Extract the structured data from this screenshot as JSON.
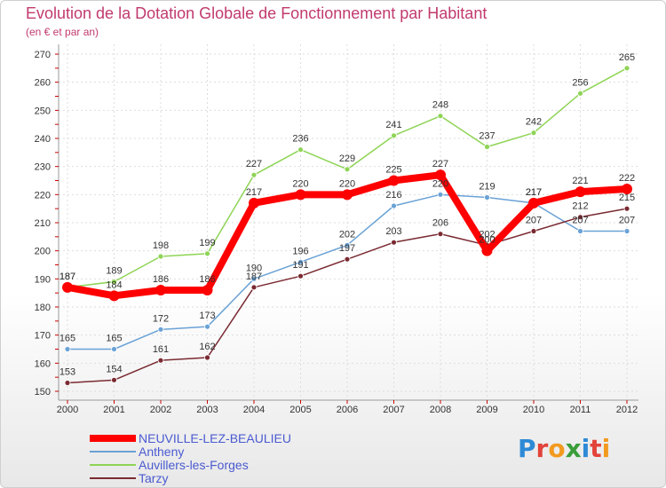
{
  "title": "Evolution de la Dotation Globale de Fonctionnement par Habitant",
  "subtitle": "(en € et par an)",
  "logo": {
    "text": "Proxiti",
    "letters": [
      "P",
      "r",
      "o",
      "x",
      "i",
      "t",
      "i"
    ],
    "colors": [
      "#2e8ad6",
      "#e2433a",
      "#f29a1f",
      "#3a9d3a",
      "#2e8ad6",
      "#e2433a",
      "#f29a1f"
    ]
  },
  "chart_data": {
    "type": "line",
    "title": "Evolution de la Dotation Globale de Fonctionnement par Habitant",
    "subtitle": "(en € et par an)",
    "xlabel": "",
    "ylabel": "",
    "ylim": [
      150,
      270
    ],
    "yticks": [
      150,
      160,
      170,
      180,
      190,
      200,
      210,
      220,
      230,
      240,
      250,
      260,
      270
    ],
    "categories": [
      "2000",
      "2001",
      "2002",
      "2003",
      "2004",
      "2005",
      "2006",
      "2007",
      "2008",
      "2009",
      "2010",
      "2011",
      "2012"
    ],
    "grid": true,
    "legend_position": "bottom-left",
    "series": [
      {
        "name": "Auvillers-les-Forges",
        "color": "#8ed455",
        "values": [
          187,
          189,
          198,
          199,
          227,
          236,
          229,
          241,
          248,
          237,
          242,
          256,
          265
        ]
      },
      {
        "name": "Antheny",
        "color": "#6aa2d6",
        "values": [
          165,
          165,
          172,
          173,
          190,
          196,
          202,
          216,
          220,
          219,
          217,
          207,
          207
        ]
      },
      {
        "name": "Tarzy",
        "color": "#7a2a32",
        "values": [
          153,
          154,
          161,
          162,
          187,
          191,
          197,
          203,
          206,
          202,
          207,
          212,
          215
        ]
      },
      {
        "name": "NEUVILLE-LEZ-BEAULIEU",
        "color": "#ff0000",
        "bold": true,
        "values": [
          187,
          184,
          186,
          186,
          217,
          220,
          220,
          225,
          227,
          200,
          217,
          221,
          222
        ]
      }
    ],
    "legend_order": [
      "NEUVILLE-LEZ-BEAULIEU",
      "Antheny",
      "Auvillers-les-Forges",
      "Tarzy"
    ]
  }
}
